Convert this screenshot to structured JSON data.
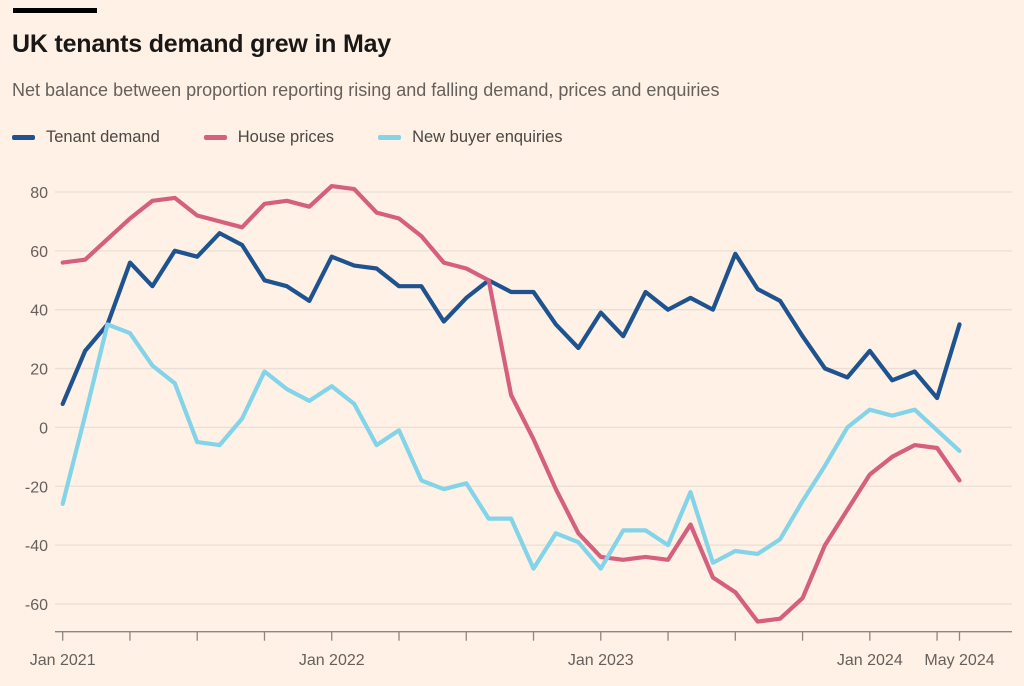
{
  "page": {
    "background": "#FFF1E5",
    "text_colors": {
      "title": "#1A1817",
      "subtitle": "#66605C",
      "legend": "#4C4742",
      "axis_labels": "#66605C"
    }
  },
  "header": {
    "title": "UK tenants demand grew in May",
    "subtitle": "Net balance between proportion reporting rising and falling demand, prices and enquiries"
  },
  "legend": [
    {
      "label": "Tenant demand",
      "color": "#1E538F"
    },
    {
      "label": "House prices",
      "color": "#D5607D"
    },
    {
      "label": "New buyer enquiries",
      "color": "#83D4E8"
    }
  ],
  "chart_data": {
    "type": "line",
    "title": "UK tenants demand grew in May",
    "subtitle": "Net balance between proportion reporting rising and falling demand, prices and enquiries",
    "x_unit": "month",
    "x_range": [
      "Jan 2021",
      "May 2024"
    ],
    "n_points": 41,
    "x_tick_labels": [
      {
        "label": "Jan 2021",
        "month_index": 0
      },
      {
        "label": "Jan 2022",
        "month_index": 12
      },
      {
        "label": "Jan 2023",
        "month_index": 24
      },
      {
        "label": "Jan 2024",
        "month_index": 36
      },
      {
        "label": "May 2024",
        "month_index": 40
      }
    ],
    "y_ticks": [
      80,
      60,
      40,
      20,
      0,
      -20,
      -40,
      -60
    ],
    "ylim": [
      -70,
      88
    ],
    "grid": "horizontal",
    "legend_position": "top",
    "grid_color": "#EADFD4",
    "axis_color": "#8C8680",
    "series": [
      {
        "name": "Tenant demand",
        "color": "#1E538F",
        "values": [
          8,
          26,
          35,
          56,
          48,
          60,
          58,
          66,
          62,
          50,
          48,
          43,
          58,
          55,
          54,
          48,
          48,
          36,
          44,
          50,
          46,
          46,
          35,
          27,
          39,
          31,
          46,
          40,
          44,
          40,
          59,
          47,
          43,
          31,
          20,
          17,
          26,
          16,
          19,
          10,
          35
        ]
      },
      {
        "name": "House prices",
        "color": "#D5607D",
        "values": [
          56,
          57,
          64,
          71,
          77,
          78,
          72,
          70,
          68,
          76,
          77,
          75,
          82,
          81,
          73,
          71,
          65,
          56,
          54,
          50,
          11,
          -4,
          -21,
          -36,
          -44,
          -45,
          -44,
          -45,
          -33,
          -51,
          -56,
          -66,
          -65,
          -58,
          -40,
          -28,
          -16,
          -10,
          -6,
          -7,
          -18
        ]
      },
      {
        "name": "New buyer enquiries",
        "color": "#83D4E8",
        "values": [
          -26,
          4,
          35,
          32,
          21,
          15,
          -5,
          -6,
          3,
          19,
          13,
          9,
          14,
          8,
          -6,
          -1,
          -18,
          -21,
          -19,
          -31,
          -31,
          -48,
          -36,
          -39,
          -48,
          -35,
          -35,
          -40,
          -22,
          -46,
          -42,
          -43,
          -38,
          -25,
          -13,
          0,
          6,
          4,
          6,
          -1,
          -8
        ]
      }
    ]
  }
}
